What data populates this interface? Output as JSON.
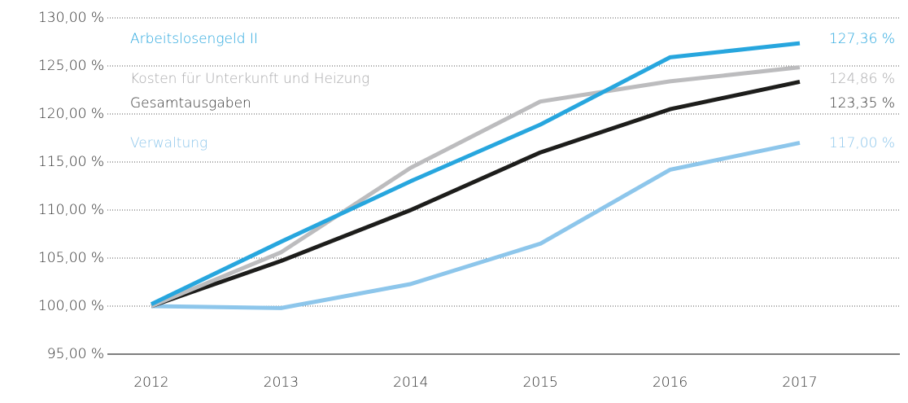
{
  "chart_data": {
    "type": "line",
    "x": [
      "2012",
      "2013",
      "2014",
      "2015",
      "2016",
      "2017"
    ],
    "series": [
      {
        "name": "Arbeitslosengeld II",
        "color": "#27a6de",
        "values": [
          100.2,
          106.7,
          113.0,
          118.9,
          125.9,
          127.36
        ],
        "value_labels": [
          null,
          null,
          null,
          null,
          null,
          "127,36 %"
        ]
      },
      {
        "name": "Kosten für Unterkunft und Heizung",
        "color": "#bcbcbe",
        "values": [
          100.0,
          105.6,
          114.4,
          121.3,
          123.4,
          124.86
        ],
        "value_labels": [
          null,
          null,
          null,
          null,
          null,
          "124,86 %"
        ]
      },
      {
        "name": "Gesamtausgaben",
        "color": "#1d1d1b",
        "values": [
          100.0,
          104.7,
          110.0,
          116.0,
          120.5,
          123.35
        ],
        "value_labels": [
          null,
          null,
          null,
          null,
          null,
          "123,35 %"
        ]
      },
      {
        "name": "Verwaltung",
        "color": "#8dc6eb",
        "values": [
          100.0,
          99.8,
          102.3,
          106.5,
          114.2,
          117.0
        ],
        "value_labels": [
          null,
          null,
          null,
          null,
          null,
          "117,00 %"
        ]
      }
    ],
    "ylim": [
      95,
      130
    ],
    "yticks": [
      {
        "value": 95,
        "label": "95,00 %"
      },
      {
        "value": 100,
        "label": "100,00 %"
      },
      {
        "value": 105,
        "label": "105,00 %"
      },
      {
        "value": 110,
        "label": "110,00 %"
      },
      {
        "value": 115,
        "label": "115,00 %"
      },
      {
        "value": 120,
        "label": "120,00 %"
      },
      {
        "value": 125,
        "label": "125,00 %"
      },
      {
        "value": 130,
        "label": "130,00 %"
      }
    ],
    "grid": true
  }
}
